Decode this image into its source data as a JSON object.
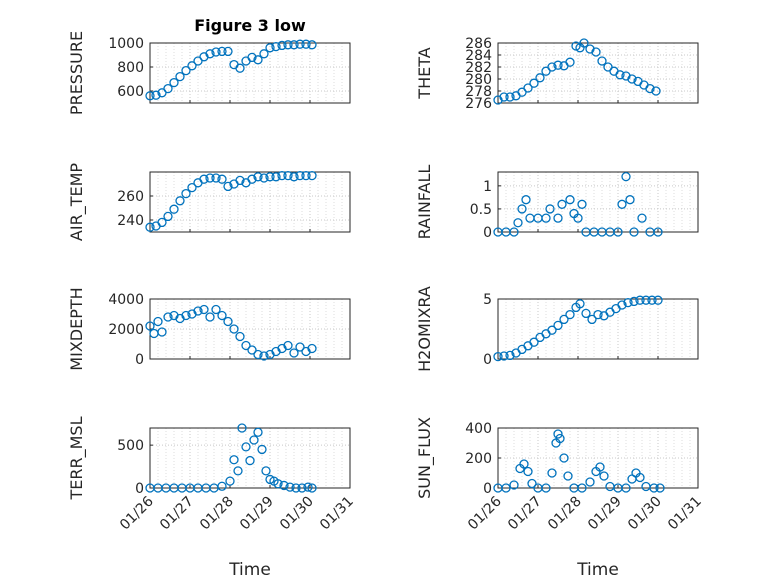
{
  "figure": {
    "title": "Figure 3 low",
    "marker_color": "#0072BD",
    "grid": true
  },
  "chart_data": [
    {
      "type": "scatter",
      "position": "row1-left",
      "ylabel": "PRESSURE",
      "xlim": [
        0,
        5
      ],
      "ylim": [
        500,
        1000
      ],
      "yticks": [
        600,
        800,
        1000
      ],
      "ytick_labels": [
        "600",
        "800",
        "1000"
      ],
      "x": [
        0,
        0.15,
        0.3,
        0.45,
        0.6,
        0.75,
        0.9,
        1.05,
        1.2,
        1.35,
        1.5,
        1.65,
        1.8,
        1.95,
        2.1,
        2.25,
        2.4,
        2.55,
        2.7,
        2.85,
        3.0,
        3.15,
        3.3,
        3.45,
        3.6,
        3.75,
        3.9,
        4.05
      ],
      "y": [
        560,
        565,
        585,
        620,
        670,
        720,
        770,
        810,
        850,
        885,
        910,
        925,
        930,
        930,
        820,
        790,
        850,
        880,
        860,
        910,
        960,
        970,
        980,
        985,
        985,
        990,
        990,
        985
      ]
    },
    {
      "type": "scatter",
      "position": "row1-right",
      "ylabel": "THETA",
      "xlim": [
        0,
        5
      ],
      "ylim": [
        276,
        286
      ],
      "yticks": [
        276,
        278,
        280,
        282,
        284,
        286
      ],
      "ytick_labels": [
        "276",
        "278",
        "280",
        "282",
        "284",
        "286"
      ],
      "x": [
        0,
        0.15,
        0.3,
        0.45,
        0.6,
        0.75,
        0.9,
        1.05,
        1.2,
        1.35,
        1.5,
        1.65,
        1.8,
        1.95,
        2.05,
        2.15,
        2.3,
        2.45,
        2.6,
        2.75,
        2.9,
        3.05,
        3.2,
        3.35,
        3.5,
        3.65,
        3.8,
        3.95
      ],
      "y": [
        276.5,
        277,
        277,
        277.2,
        277.8,
        278.5,
        279.3,
        280.2,
        281.3,
        282,
        282.3,
        282.2,
        282.8,
        285.5,
        285.2,
        286,
        285,
        284.5,
        283,
        282,
        281.3,
        280.7,
        280.5,
        280,
        279.6,
        279,
        278.4,
        278
      ]
    },
    {
      "type": "scatter",
      "position": "row2-left",
      "ylabel": "AIR_TEMP",
      "xlim": [
        0,
        5
      ],
      "ylim": [
        230,
        280
      ],
      "yticks": [
        240,
        260
      ],
      "ytick_labels": [
        "240",
        "260"
      ],
      "x": [
        0,
        0.15,
        0.3,
        0.45,
        0.6,
        0.75,
        0.9,
        1.05,
        1.2,
        1.35,
        1.5,
        1.65,
        1.8,
        1.95,
        2.1,
        2.25,
        2.4,
        2.55,
        2.7,
        2.85,
        3.0,
        3.15,
        3.3,
        3.45,
        3.6,
        3.75,
        3.9,
        4.05
      ],
      "y": [
        234,
        235,
        238,
        243,
        249,
        256,
        262,
        267,
        271,
        274,
        275,
        275,
        274,
        268,
        270,
        273,
        271,
        274,
        276,
        275,
        276,
        276,
        277,
        277,
        276,
        277,
        277,
        277
      ]
    },
    {
      "type": "scatter",
      "position": "row2-right",
      "ylabel": "RAINFALL",
      "xlim": [
        0,
        5
      ],
      "ylim": [
        0,
        1.3
      ],
      "yticks": [
        0,
        0.5,
        1
      ],
      "ytick_labels": [
        "0",
        "0.5",
        "1"
      ],
      "x": [
        0,
        0.2,
        0.4,
        0.5,
        0.6,
        0.7,
        0.8,
        1.0,
        1.2,
        1.3,
        1.5,
        1.6,
        1.8,
        1.9,
        2.0,
        2.1,
        2.2,
        2.4,
        2.6,
        2.8,
        3.0,
        3.1,
        3.2,
        3.3,
        3.4,
        3.6,
        3.8,
        4.0
      ],
      "y": [
        0,
        0,
        0,
        0.2,
        0.5,
        0.7,
        0.3,
        0.3,
        0.3,
        0.5,
        0.3,
        0.6,
        0.7,
        0.4,
        0.3,
        0.6,
        0,
        0,
        0,
        0,
        0,
        0.6,
        1.2,
        0.7,
        0,
        0.3,
        0,
        0
      ]
    },
    {
      "type": "scatter",
      "position": "row3-left",
      "ylabel": "MIXDEPTH",
      "xlim": [
        0,
        5
      ],
      "ylim": [
        0,
        4000
      ],
      "yticks": [
        0,
        2000,
        4000
      ],
      "ytick_labels": [
        "0",
        "2000",
        "4000"
      ],
      "x": [
        0,
        0.1,
        0.2,
        0.3,
        0.45,
        0.6,
        0.75,
        0.9,
        1.05,
        1.2,
        1.35,
        1.5,
        1.65,
        1.8,
        1.95,
        2.1,
        2.25,
        2.4,
        2.55,
        2.7,
        2.85,
        3.0,
        3.15,
        3.3,
        3.45,
        3.6,
        3.75,
        3.9,
        4.05
      ],
      "y": [
        2200,
        1700,
        2500,
        1800,
        2800,
        2900,
        2700,
        2900,
        3000,
        3200,
        3300,
        2800,
        3300,
        2900,
        2500,
        2000,
        1500,
        900,
        600,
        300,
        200,
        300,
        500,
        700,
        900,
        400,
        800,
        500,
        700
      ]
    },
    {
      "type": "scatter",
      "position": "row3-right",
      "ylabel": "H2OMIXRA",
      "xlim": [
        0,
        5
      ],
      "ylim": [
        0,
        5
      ],
      "yticks": [
        0,
        5
      ],
      "ytick_labels": [
        "0",
        "5"
      ],
      "x": [
        0,
        0.15,
        0.3,
        0.45,
        0.6,
        0.75,
        0.9,
        1.05,
        1.2,
        1.35,
        1.5,
        1.65,
        1.8,
        1.95,
        2.05,
        2.2,
        2.35,
        2.5,
        2.65,
        2.8,
        2.95,
        3.1,
        3.25,
        3.4,
        3.55,
        3.7,
        3.85,
        4.0
      ],
      "y": [
        0.2,
        0.25,
        0.3,
        0.5,
        0.8,
        1.1,
        1.4,
        1.8,
        2.1,
        2.4,
        2.8,
        3.3,
        3.7,
        4.3,
        4.6,
        3.8,
        3.3,
        3.7,
        3.6,
        3.9,
        4.2,
        4.5,
        4.7,
        4.8,
        4.9,
        4.9,
        4.9,
        4.9
      ]
    },
    {
      "type": "scatter",
      "position": "row4-left",
      "ylabel": "TERR_MSL",
      "xlim": [
        0,
        5
      ],
      "ylim": [
        0,
        700
      ],
      "yticks": [
        0,
        500
      ],
      "ytick_labels": [
        "0",
        "500"
      ],
      "x": [
        0,
        0.2,
        0.4,
        0.6,
        0.8,
        1.0,
        1.2,
        1.4,
        1.6,
        1.8,
        2.0,
        2.1,
        2.2,
        2.3,
        2.4,
        2.5,
        2.6,
        2.7,
        2.8,
        2.9,
        3.0,
        3.1,
        3.2,
        3.35,
        3.5,
        3.65,
        3.8,
        3.95,
        4.05
      ],
      "y": [
        0,
        0,
        0,
        0,
        0,
        0,
        0,
        0,
        0,
        20,
        80,
        330,
        200,
        700,
        480,
        320,
        560,
        650,
        450,
        200,
        100,
        80,
        50,
        30,
        10,
        0,
        0,
        10,
        0
      ]
    },
    {
      "type": "scatter",
      "position": "row4-right",
      "ylabel": "SUN_FLUX",
      "xlim": [
        0,
        5
      ],
      "ylim": [
        0,
        400
      ],
      "yticks": [
        0,
        200,
        400
      ],
      "ytick_labels": [
        "0",
        "200",
        "400"
      ],
      "x": [
        0,
        0.2,
        0.4,
        0.55,
        0.65,
        0.75,
        0.85,
        1.0,
        1.2,
        1.35,
        1.45,
        1.5,
        1.55,
        1.65,
        1.75,
        1.9,
        2.1,
        2.3,
        2.45,
        2.55,
        2.65,
        2.8,
        3.0,
        3.2,
        3.35,
        3.45,
        3.55,
        3.7,
        3.9,
        4.05
      ],
      "y": [
        0,
        0,
        20,
        130,
        160,
        110,
        30,
        0,
        0,
        100,
        300,
        360,
        330,
        200,
        80,
        0,
        0,
        40,
        110,
        140,
        80,
        10,
        0,
        0,
        60,
        100,
        70,
        10,
        0,
        0
      ]
    }
  ],
  "xaxis": {
    "label": "Time",
    "ticks": [
      0,
      1,
      2,
      3,
      4,
      5
    ],
    "tick_labels": [
      "01/26",
      "01/27",
      "01/28",
      "01/29",
      "01/30",
      "01/31"
    ]
  }
}
